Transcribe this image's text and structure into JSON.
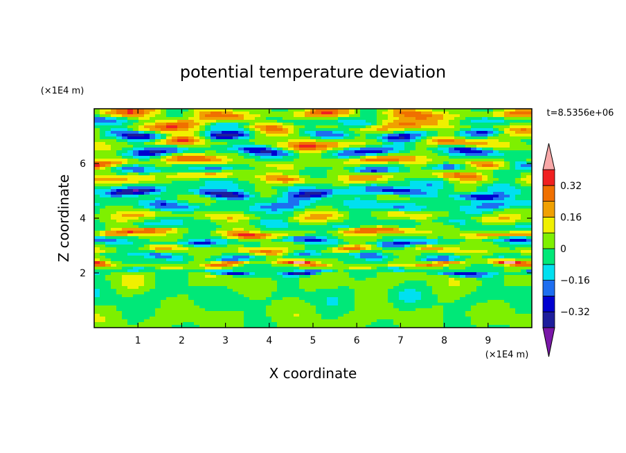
{
  "chart_data": {
    "type": "heatmap",
    "title": "potential temperature deviation",
    "xlabel": "X coordinate",
    "ylabel": "Z coordinate",
    "x_unit": "(×1E4 m)",
    "y_unit": "(×1E4 m)",
    "time_label": "t=8.5356e+06",
    "xlim": [
      0,
      10
    ],
    "ylim": [
      0,
      8
    ],
    "x_ticks": [
      1,
      2,
      3,
      4,
      5,
      6,
      7,
      8,
      9
    ],
    "y_ticks": [
      2,
      4,
      6
    ],
    "colorbar": {
      "levels": [
        -0.4,
        -0.32,
        -0.24,
        -0.16,
        -0.08,
        0,
        0.08,
        0.16,
        0.24,
        0.32,
        0.4
      ],
      "tick_labels": [
        "0.32",
        "0.16",
        "0",
        "−0.16",
        "−0.32"
      ],
      "tick_values": [
        0.32,
        0.16,
        0,
        -0.16,
        -0.32
      ],
      "colors_low_to_high": [
        "#7a18a8",
        "#1e1e9c",
        "#0000d0",
        "#1e6ef0",
        "#00e0f0",
        "#00e878",
        "#7ef000",
        "#f0f000",
        "#f0a000",
        "#f07000",
        "#f02020",
        "#f8a8a8"
      ],
      "extend": "both"
    },
    "bands": [
      {
        "z": 7.8,
        "amp": 0.3,
        "len": 2.2,
        "w": 0.2
      },
      {
        "z": 7.5,
        "amp": -0.2,
        "len": 3.0,
        "w": 0.15
      },
      {
        "z": 7.3,
        "amp": 0.36,
        "len": 2.6,
        "w": 0.2
      },
      {
        "z": 7.05,
        "amp": -0.38,
        "len": 2.0,
        "w": 0.18
      },
      {
        "z": 6.75,
        "amp": 0.3,
        "len": 3.0,
        "w": 0.18
      },
      {
        "z": 6.45,
        "amp": -0.3,
        "len": 2.4,
        "w": 0.16
      },
      {
        "z": 6.05,
        "amp": 0.34,
        "len": 2.2,
        "w": 0.15
      },
      {
        "z": 5.85,
        "amp": -0.26,
        "len": 1.8,
        "w": 0.14
      },
      {
        "z": 5.5,
        "amp": 0.26,
        "len": 2.0,
        "w": 0.16
      },
      {
        "z": 5.15,
        "amp": -0.12,
        "len": 1.6,
        "w": 0.16
      },
      {
        "z": 4.9,
        "amp": -0.34,
        "len": 2.0,
        "w": 0.14
      },
      {
        "z": 4.45,
        "amp": -0.22,
        "len": 2.5,
        "w": 0.18
      },
      {
        "z": 4.05,
        "amp": 0.18,
        "len": 2.0,
        "w": 0.16
      },
      {
        "z": 3.8,
        "amp": -0.14,
        "len": 2.2,
        "w": 0.14
      },
      {
        "z": 3.45,
        "amp": 0.34,
        "len": 2.8,
        "w": 0.13
      },
      {
        "z": 3.15,
        "amp": -0.3,
        "len": 2.4,
        "w": 0.12
      },
      {
        "z": 2.85,
        "amp": 0.26,
        "len": 2.0,
        "w": 0.12
      },
      {
        "z": 2.6,
        "amp": -0.22,
        "len": 1.6,
        "w": 0.12
      },
      {
        "z": 2.3,
        "amp": 0.4,
        "len": 1.6,
        "w": 0.09
      },
      {
        "z": 2.05,
        "amp": -0.36,
        "len": 1.8,
        "w": 0.08
      },
      {
        "z": 1.7,
        "amp": 0.06,
        "len": 2.0,
        "w": 0.35
      },
      {
        "z": 1.1,
        "amp": -0.05,
        "len": 1.8,
        "w": 0.4
      },
      {
        "z": 0.4,
        "amp": 0.05,
        "len": 2.2,
        "w": 0.4
      }
    ]
  }
}
